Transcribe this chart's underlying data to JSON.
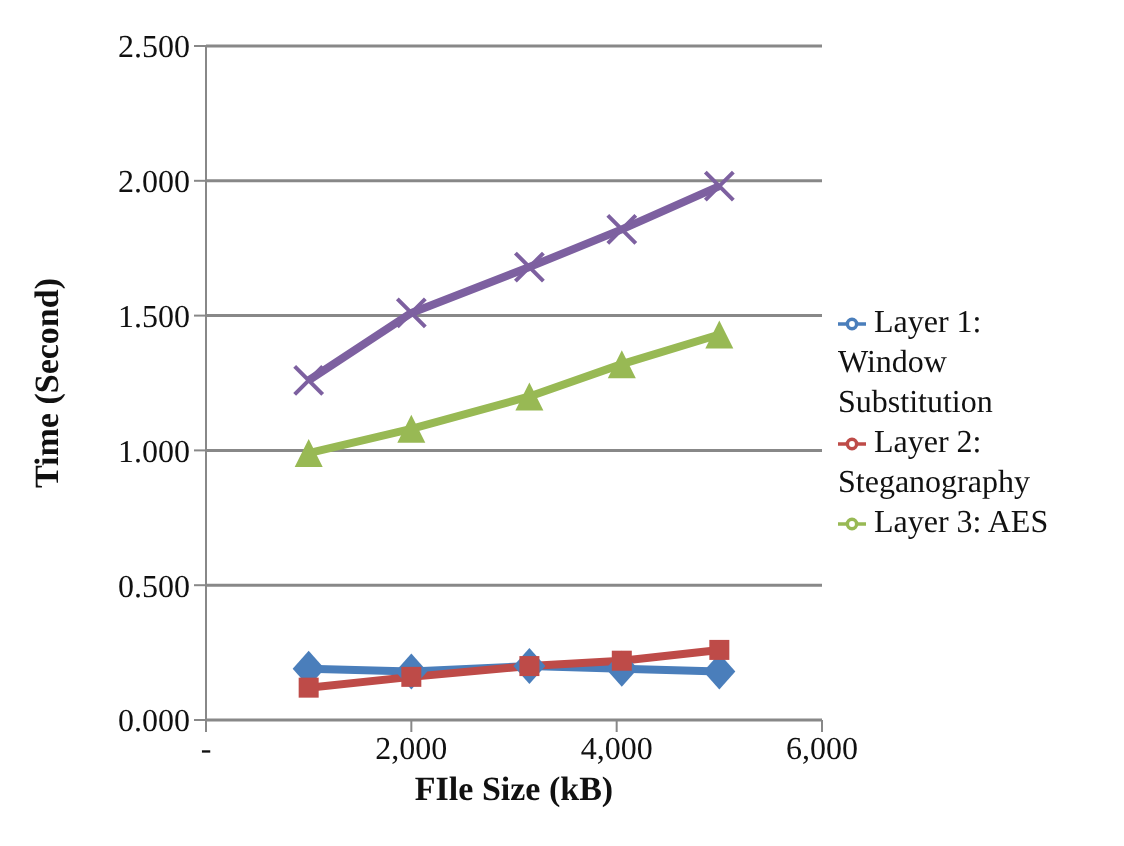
{
  "chart_data": {
    "type": "line",
    "xlabel": "FIle Size (kB)",
    "ylabel": "Time (Second)",
    "x": [
      1000,
      2000,
      3150,
      4050,
      5000
    ],
    "series": [
      {
        "name": "Layer 1: Window Substitution",
        "color": "#4a7ebb",
        "marker": "diamond",
        "values": [
          0.19,
          0.18,
          0.2,
          0.19,
          0.18
        ]
      },
      {
        "name": "Layer 2: Steganography",
        "color": "#be4b48",
        "marker": "square",
        "values": [
          0.12,
          0.16,
          0.2,
          0.22,
          0.26
        ]
      },
      {
        "name": "Layer 3: AES",
        "color": "#98b954",
        "marker": "triangle",
        "values": [
          0.99,
          1.08,
          1.2,
          1.32,
          1.43
        ]
      },
      {
        "color": "#7d60a0",
        "marker": "cross",
        "values": [
          1.26,
          1.51,
          1.68,
          1.82,
          1.98
        ]
      }
    ],
    "xlim": [
      0,
      6000
    ],
    "xticks": [
      {
        "value": 0,
        "label": "-"
      },
      {
        "value": 2000,
        "label": "2,000"
      },
      {
        "value": 4000,
        "label": "4,000"
      },
      {
        "value": 6000,
        "label": "6,000"
      }
    ],
    "ylim": [
      0,
      2.5
    ],
    "yticks": [
      {
        "value": 0,
        "label": "0.000"
      },
      {
        "value": 0.5,
        "label": "0.500"
      },
      {
        "value": 1,
        "label": "1.000"
      },
      {
        "value": 1.5,
        "label": "1.500"
      },
      {
        "value": 2,
        "label": "2.000"
      },
      {
        "value": 2.5,
        "label": "2.500"
      }
    ],
    "grid": "y",
    "legend": "right"
  }
}
